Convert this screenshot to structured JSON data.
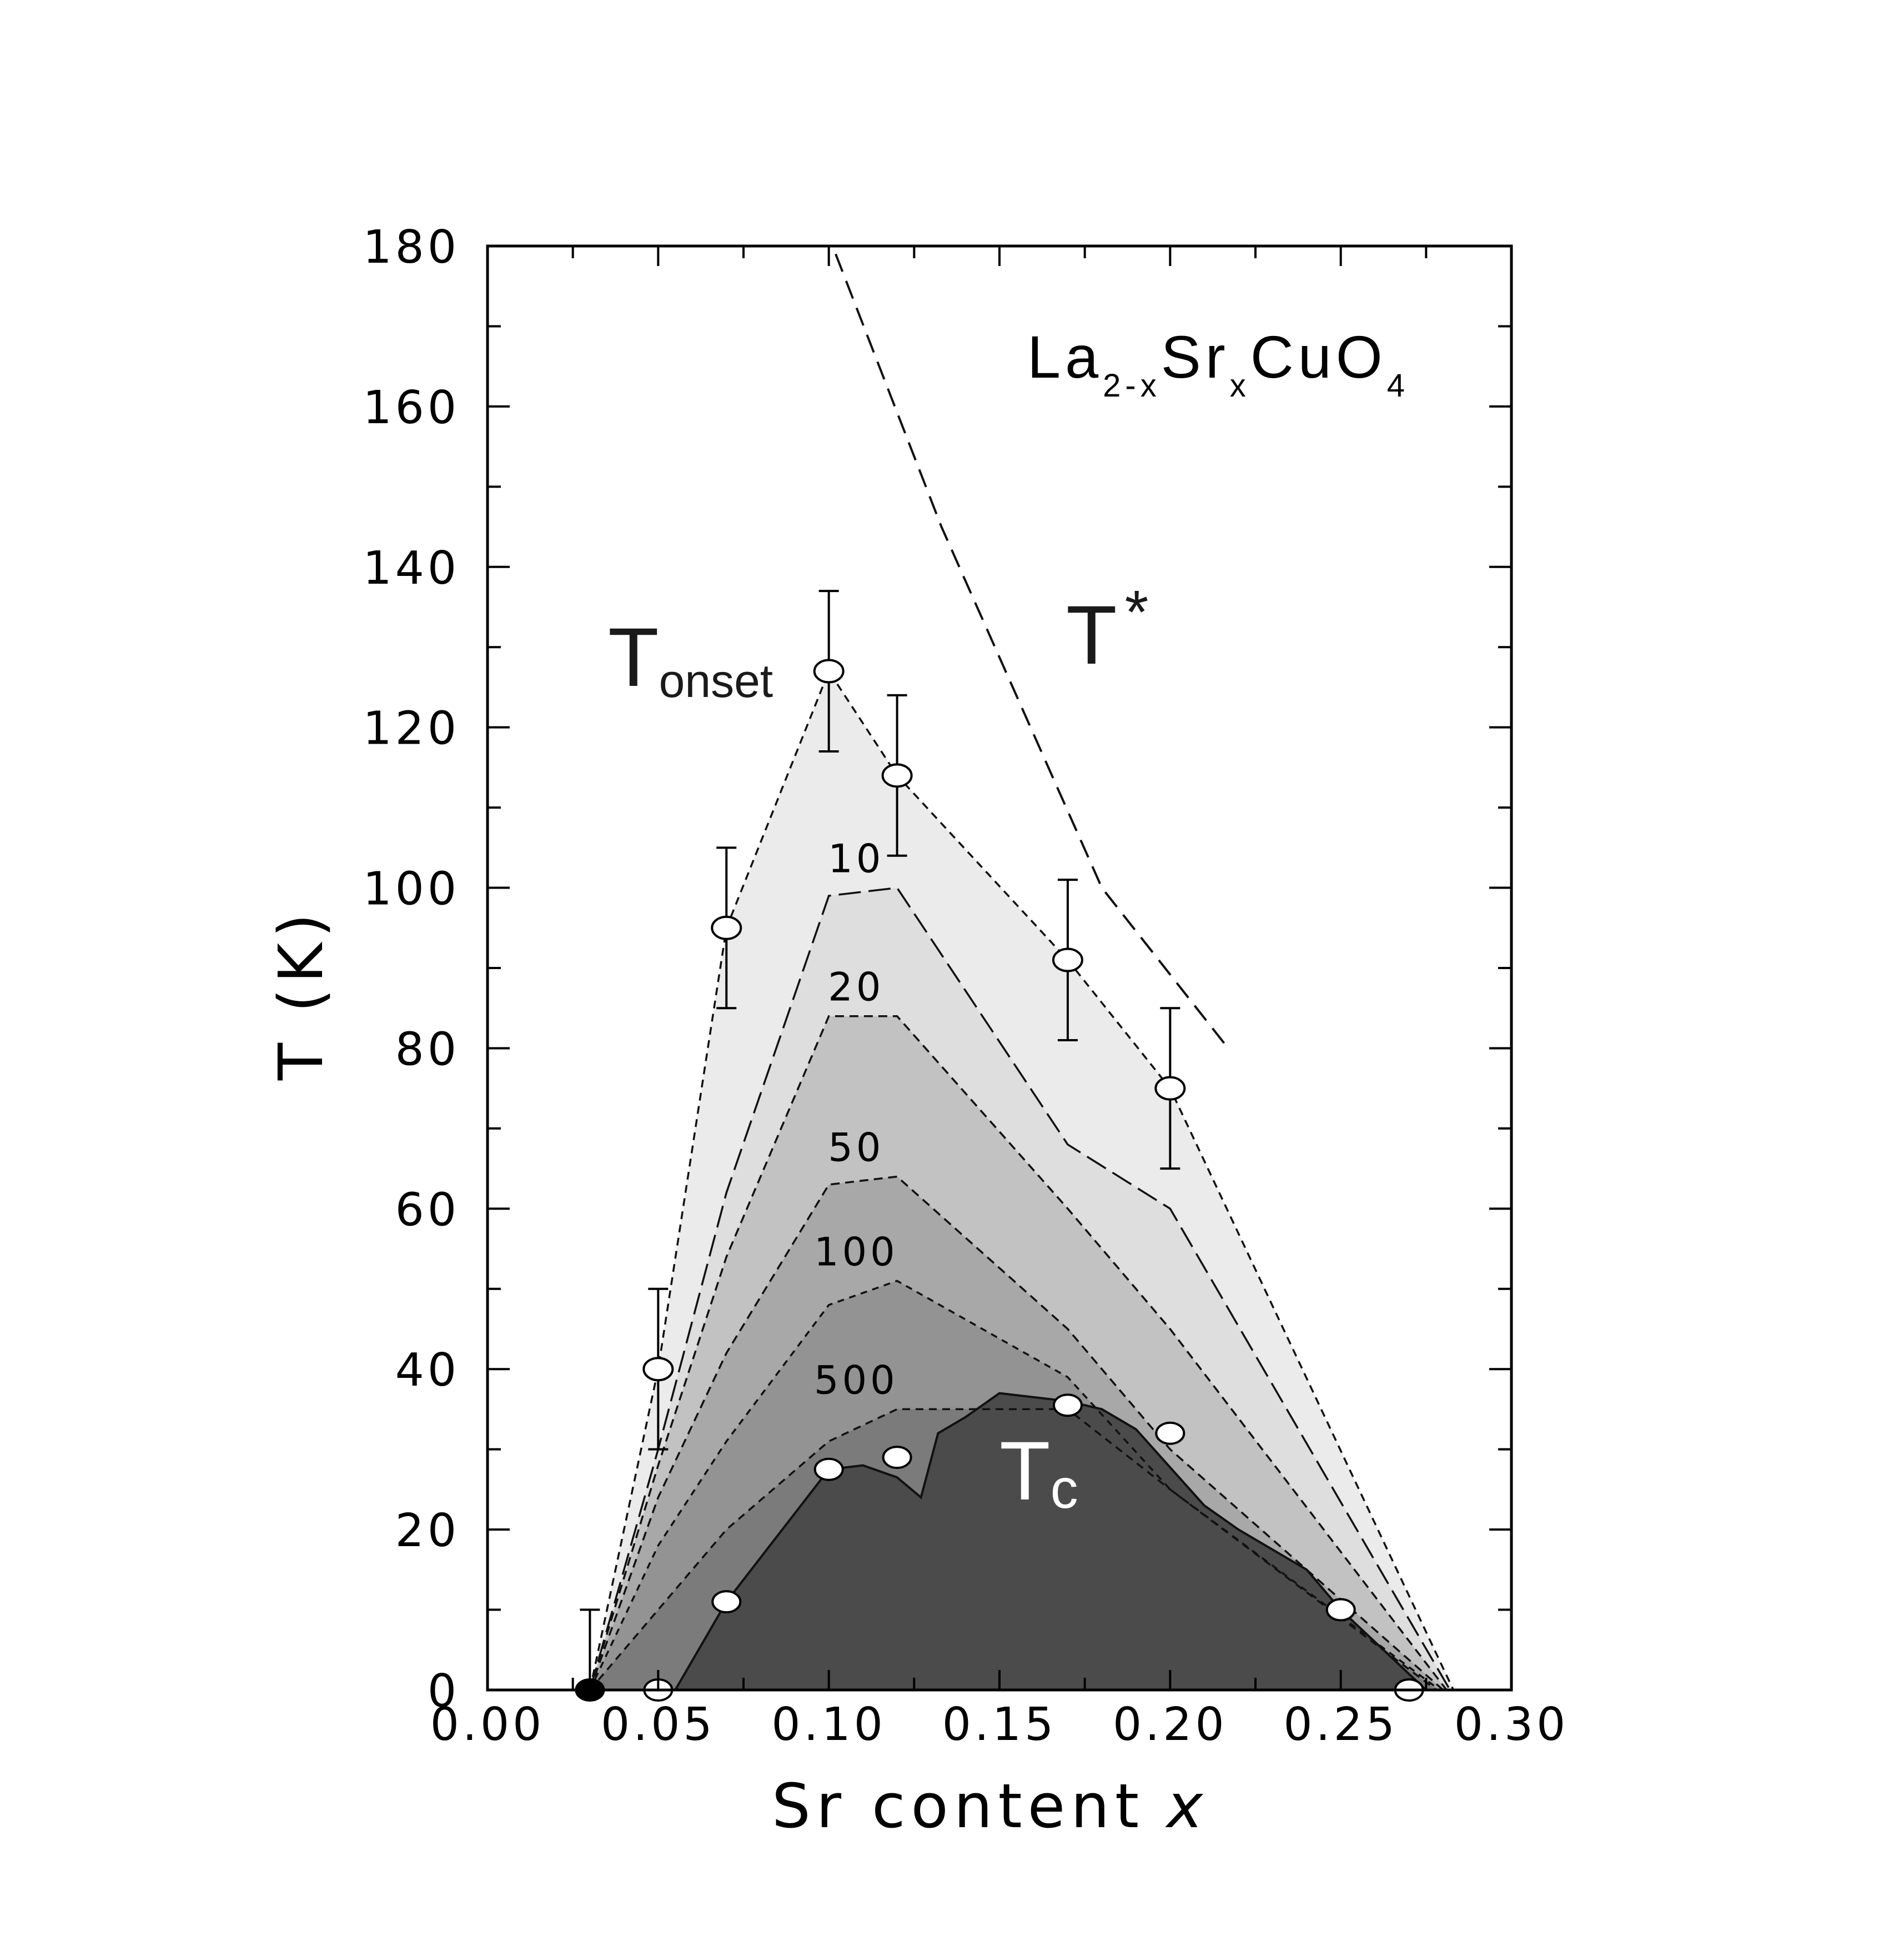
{
  "chart_data": {
    "type": "area",
    "title": "",
    "xlabel": "Sr content",
    "xlabel_var": "x",
    "ylabel": "T (K)",
    "xlim": [
      0.0,
      0.3
    ],
    "ylim": [
      0,
      180
    ],
    "x_ticks": [
      "0.00",
      "0.05",
      "0.10",
      "0.15",
      "0.20",
      "0.25",
      "0.30"
    ],
    "y_ticks": [
      "0",
      "20",
      "40",
      "60",
      "80",
      "100",
      "120",
      "140",
      "160",
      "180"
    ],
    "x_tick_values": [
      0.0,
      0.05,
      0.1,
      0.15,
      0.2,
      0.25,
      0.3
    ],
    "y_tick_values": [
      0,
      20,
      40,
      60,
      80,
      100,
      120,
      140,
      160,
      180
    ],
    "grid": false,
    "compound": {
      "base": "La",
      "sub1": "2-x",
      "mid": "Sr",
      "sub2": "x",
      "end": "CuO",
      "sub3": "4"
    },
    "labels": {
      "tonset_main": "T",
      "tonset_sub": "onset",
      "tstar_main": "T",
      "tstar_sup": "*",
      "tc_main": "T",
      "tc_sub": "c"
    },
    "series": [
      {
        "name": "T",
        "role": "onset",
        "fill": "#ebebeb",
        "points": [
          [
            0.03,
            0
          ],
          [
            0.05,
            40
          ],
          [
            0.07,
            95
          ],
          [
            0.1,
            127
          ],
          [
            0.12,
            114
          ],
          [
            0.17,
            91
          ],
          [
            0.2,
            75
          ],
          [
            0.283,
            0
          ]
        ],
        "markers": [
          [
            0.05,
            40
          ],
          [
            0.07,
            95
          ],
          [
            0.1,
            127
          ],
          [
            0.12,
            114
          ],
          [
            0.17,
            91
          ],
          [
            0.2,
            75
          ]
        ],
        "errors": [
          [
            0.03,
            0,
            10
          ],
          [
            0.05,
            30,
            50
          ],
          [
            0.07,
            85,
            105
          ],
          [
            0.1,
            117,
            137
          ],
          [
            0.12,
            104,
            124
          ],
          [
            0.17,
            81,
            101
          ],
          [
            0.2,
            65,
            85
          ]
        ]
      },
      {
        "name": "10",
        "fill": "#dedede",
        "points": [
          [
            0.03,
            0
          ],
          [
            0.05,
            30
          ],
          [
            0.07,
            62
          ],
          [
            0.1,
            99
          ],
          [
            0.12,
            100
          ],
          [
            0.17,
            68
          ],
          [
            0.2,
            60
          ],
          [
            0.282,
            0
          ]
        ]
      },
      {
        "name": "20",
        "fill": "#c2c2c2",
        "points": [
          [
            0.03,
            0
          ],
          [
            0.05,
            28
          ],
          [
            0.07,
            54
          ],
          [
            0.1,
            84
          ],
          [
            0.12,
            84
          ],
          [
            0.17,
            60
          ],
          [
            0.2,
            45
          ],
          [
            0.281,
            0
          ]
        ]
      },
      {
        "name": "50",
        "fill": "#a8a8a8",
        "points": [
          [
            0.03,
            0
          ],
          [
            0.05,
            24
          ],
          [
            0.07,
            42
          ],
          [
            0.1,
            63
          ],
          [
            0.12,
            64
          ],
          [
            0.17,
            45
          ],
          [
            0.2,
            30
          ],
          [
            0.28,
            0
          ]
        ]
      },
      {
        "name": "100",
        "fill": "#939393",
        "points": [
          [
            0.03,
            0
          ],
          [
            0.05,
            18
          ],
          [
            0.07,
            31
          ],
          [
            0.1,
            48
          ],
          [
            0.12,
            51
          ],
          [
            0.17,
            39
          ],
          [
            0.2,
            25
          ],
          [
            0.279,
            0
          ]
        ]
      },
      {
        "name": "500",
        "fill": "#7b7b7b",
        "points": [
          [
            0.03,
            0
          ],
          [
            0.05,
            10
          ],
          [
            0.07,
            20
          ],
          [
            0.1,
            31
          ],
          [
            0.12,
            35
          ],
          [
            0.135,
            35
          ],
          [
            0.17,
            35
          ],
          [
            0.2,
            25
          ],
          [
            0.278,
            0
          ]
        ]
      },
      {
        "name": "T",
        "role": "c",
        "fill": "#4b4b4b",
        "points": [
          [
            0.055,
            0
          ],
          [
            0.07,
            11
          ],
          [
            0.1,
            27.5
          ],
          [
            0.11,
            28
          ],
          [
            0.12,
            26.5
          ],
          [
            0.127,
            24
          ],
          [
            0.132,
            32
          ],
          [
            0.14,
            34
          ],
          [
            0.15,
            37
          ],
          [
            0.17,
            36
          ],
          [
            0.18,
            35
          ],
          [
            0.19,
            32.5
          ],
          [
            0.21,
            23
          ],
          [
            0.22,
            20
          ],
          [
            0.24,
            15
          ],
          [
            0.25,
            10
          ],
          [
            0.275,
            0
          ]
        ],
        "markers": [
          [
            0.05,
            0
          ],
          [
            0.07,
            11
          ],
          [
            0.1,
            27.5
          ],
          [
            0.12,
            29
          ],
          [
            0.17,
            35.5
          ],
          [
            0.2,
            32
          ],
          [
            0.25,
            10
          ],
          [
            0.27,
            0
          ]
        ],
        "filled_markers": [
          [
            0.03,
            0
          ]
        ]
      },
      {
        "name": "T",
        "role": "star",
        "points": [
          [
            0.102,
            179
          ],
          [
            0.133,
            145
          ],
          [
            0.18,
            100
          ],
          [
            0.217,
            80
          ]
        ]
      }
    ]
  }
}
